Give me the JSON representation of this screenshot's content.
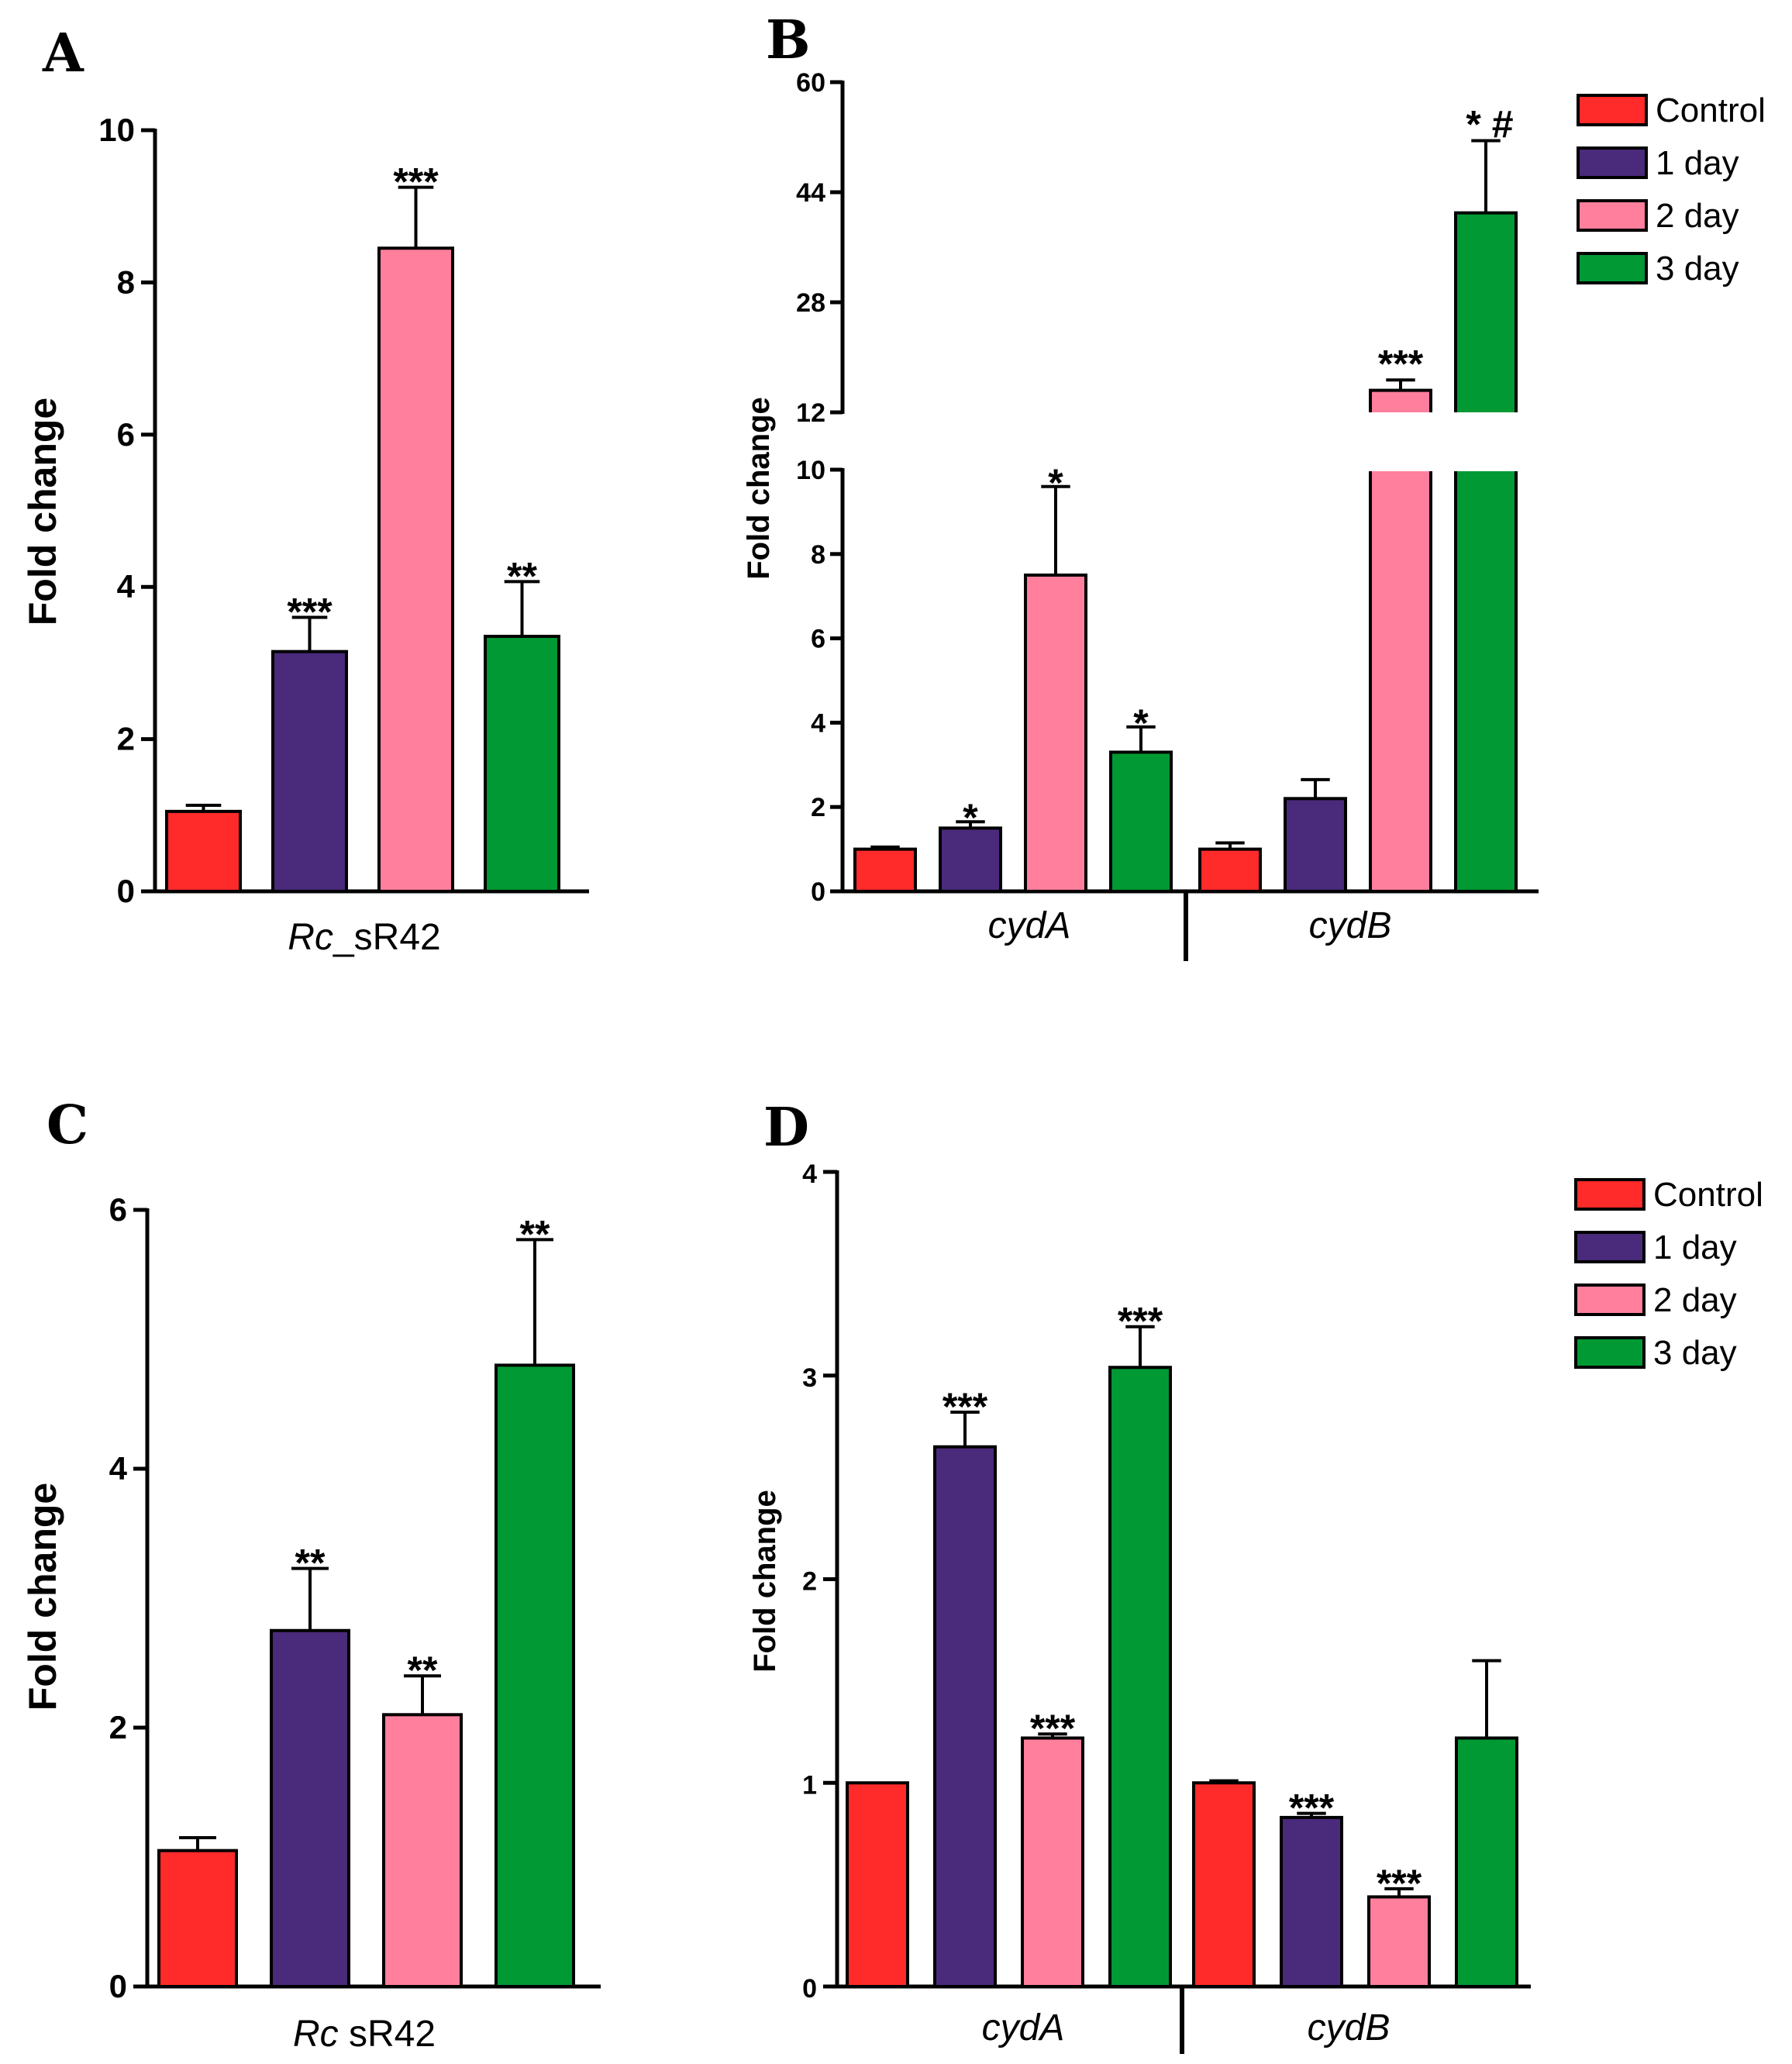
{
  "colors": {
    "Control": "#FF2A2A",
    "1 day": "#4A2A7A",
    "2 day": "#FF7F9C",
    "3 day": "#009933"
  },
  "legend": [
    "Control",
    "1 day",
    "2 day",
    "3 day"
  ],
  "chart_data": [
    {
      "panel": "A",
      "type": "bar",
      "ylabel": "Fold change",
      "ylim": [
        0,
        10
      ],
      "yticks": [
        "0",
        "2",
        "4",
        "6",
        "8",
        "10"
      ],
      "categories": [
        "Rc_sR42"
      ],
      "category_label": {
        "italic": "Rc",
        "rest": "_sR42"
      },
      "series": [
        {
          "name": "Control",
          "values": [
            1.05
          ],
          "errors": [
            0.08
          ],
          "sig": [
            ""
          ]
        },
        {
          "name": "1 day",
          "values": [
            3.15
          ],
          "errors": [
            0.45
          ],
          "sig": [
            "***"
          ]
        },
        {
          "name": "2 day",
          "values": [
            8.45
          ],
          "errors": [
            0.8
          ],
          "sig": [
            "***"
          ]
        },
        {
          "name": "3 day",
          "values": [
            3.35
          ],
          "errors": [
            0.72
          ],
          "sig": [
            "**"
          ]
        }
      ]
    },
    {
      "panel": "B",
      "type": "bar",
      "ylabel": "Fold change",
      "axis_break": {
        "lower": [
          0,
          10
        ],
        "upper": [
          12,
          60
        ]
      },
      "yticks_lower": [
        "0",
        "2",
        "4",
        "6",
        "8",
        "10"
      ],
      "yticks_upper": [
        "12",
        "28",
        "44",
        "60"
      ],
      "categories": [
        "cydA",
        "cydB"
      ],
      "series": [
        {
          "name": "Control",
          "values": [
            1.0,
            1.0
          ],
          "errors": [
            0.05,
            0.15
          ],
          "sig": [
            "",
            ""
          ]
        },
        {
          "name": "1 day",
          "values": [
            1.5,
            2.2
          ],
          "errors": [
            0.15,
            0.45
          ],
          "sig": [
            "*",
            ""
          ]
        },
        {
          "name": "2 day",
          "values": [
            7.5,
            15.2
          ],
          "errors": [
            2.1,
            1.5
          ],
          "sig": [
            "*",
            "***"
          ]
        },
        {
          "name": "3 day",
          "values": [
            3.3,
            41.0
          ],
          "errors": [
            0.6,
            10.5
          ],
          "sig": [
            "*",
            "* #"
          ]
        }
      ]
    },
    {
      "panel": "C",
      "type": "bar",
      "ylabel": "Fold change",
      "ylim": [
        0,
        6
      ],
      "yticks": [
        "0",
        "2",
        "4",
        "6"
      ],
      "categories": [
        "Rc sR42"
      ],
      "category_label": {
        "italic": "Rc",
        "rest": "  sR42"
      },
      "series": [
        {
          "name": "Control",
          "values": [
            1.05
          ],
          "errors": [
            0.1
          ],
          "sig": [
            ""
          ]
        },
        {
          "name": "1 day",
          "values": [
            2.75
          ],
          "errors": [
            0.48
          ],
          "sig": [
            "**"
          ]
        },
        {
          "name": "2 day",
          "values": [
            2.1
          ],
          "errors": [
            0.3
          ],
          "sig": [
            "**"
          ]
        },
        {
          "name": "3 day",
          "values": [
            4.8
          ],
          "errors": [
            0.97
          ],
          "sig": [
            "**"
          ]
        }
      ]
    },
    {
      "panel": "D",
      "type": "bar",
      "ylabel": "Fold change",
      "ylim": [
        0,
        4
      ],
      "yticks": [
        "0",
        "1",
        "2",
        "3",
        "4"
      ],
      "categories": [
        "cydA",
        "cydB"
      ],
      "series": [
        {
          "name": "Control",
          "values": [
            1.0,
            1.0
          ],
          "errors": [
            0.0,
            0.01
          ],
          "sig": [
            "",
            ""
          ]
        },
        {
          "name": "1 day",
          "values": [
            2.65,
            0.83
          ],
          "errors": [
            0.17,
            0.02
          ],
          "sig": [
            "***",
            "***"
          ]
        },
        {
          "name": "2 day",
          "values": [
            1.22,
            0.44
          ],
          "errors": [
            0.02,
            0.04
          ],
          "sig": [
            "***",
            "***"
          ]
        },
        {
          "name": "3 day",
          "values": [
            3.04,
            1.22
          ],
          "errors": [
            0.2,
            0.38
          ],
          "sig": [
            "***",
            ""
          ]
        }
      ]
    }
  ]
}
